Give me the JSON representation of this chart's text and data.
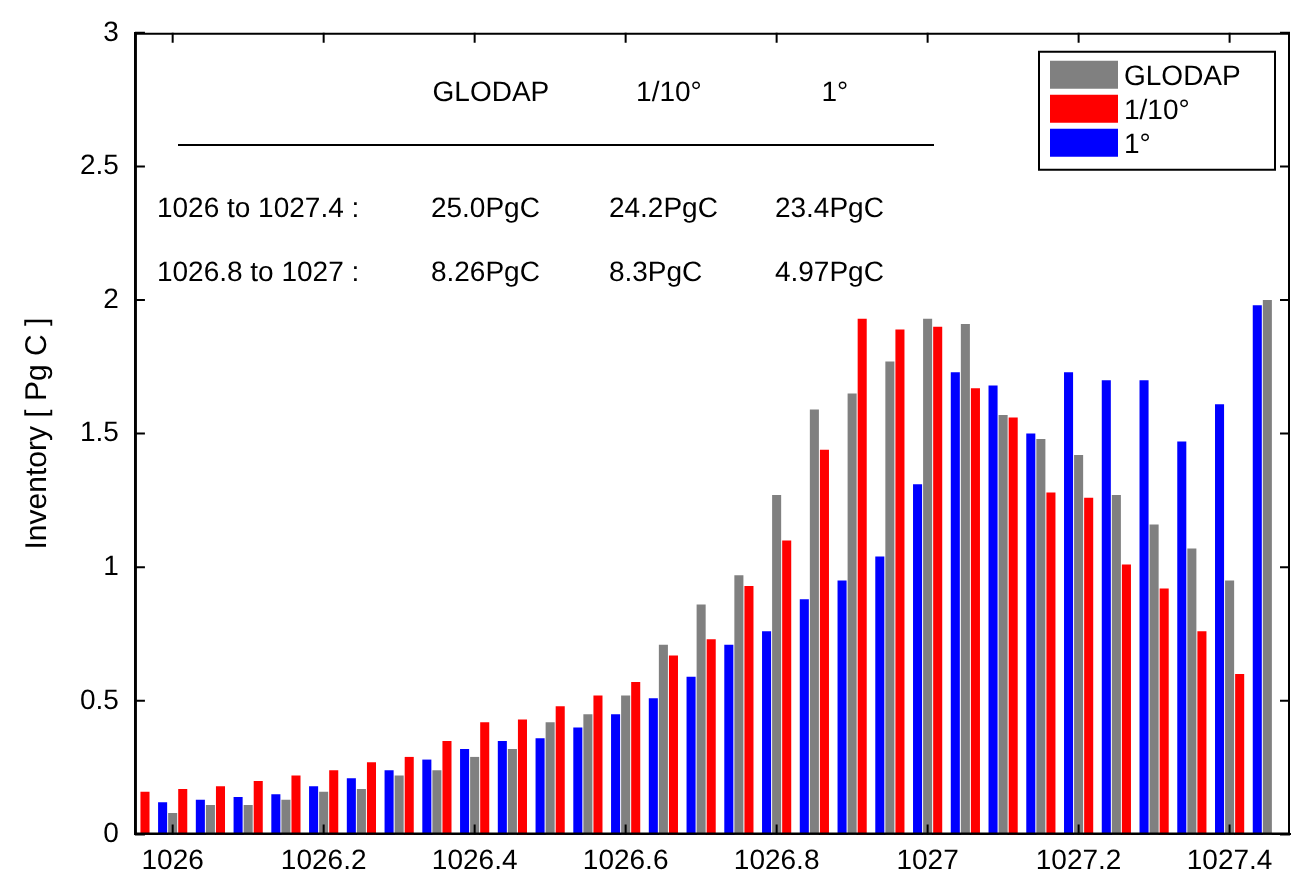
{
  "chart_data": {
    "type": "bar",
    "ylabel": "Inventory [ Pg C ]",
    "x": [
      1025.95,
      1026,
      1026.05,
      1026.1,
      1026.15,
      1026.2,
      1026.25,
      1026.3,
      1026.35,
      1026.4,
      1026.45,
      1026.5,
      1026.55,
      1026.6,
      1026.65,
      1026.7,
      1026.75,
      1026.8,
      1026.85,
      1026.9,
      1026.95,
      1027,
      1027.05,
      1027.1,
      1027.15,
      1027.2,
      1027.25,
      1027.3,
      1027.35,
      1027.4,
      1027.45
    ],
    "series": [
      {
        "name": "1°",
        "color": "#0000ff",
        "values": [
          null,
          0.12,
          0.13,
          0.14,
          0.15,
          0.18,
          0.21,
          0.24,
          0.28,
          0.32,
          0.35,
          0.36,
          0.4,
          0.45,
          0.51,
          0.59,
          0.71,
          0.76,
          0.88,
          0.95,
          1.04,
          1.31,
          1.73,
          1.68,
          1.5,
          1.73,
          1.7,
          1.7,
          1.47,
          1.61,
          1.98
        ]
      },
      {
        "name": "GLODAP",
        "color": "#808080",
        "values": [
          null,
          0.08,
          0.11,
          0.11,
          0.13,
          0.16,
          0.17,
          0.22,
          0.24,
          0.29,
          0.32,
          0.42,
          0.45,
          0.52,
          0.71,
          0.86,
          0.97,
          1.27,
          1.59,
          1.65,
          1.77,
          1.93,
          1.91,
          1.57,
          1.48,
          1.42,
          1.27,
          1.16,
          1.07,
          0.95,
          2.0
        ]
      },
      {
        "name": "1/10°",
        "color": "#ff0000",
        "values": [
          0.16,
          0.17,
          0.18,
          0.2,
          0.22,
          0.24,
          0.27,
          0.29,
          0.35,
          0.42,
          0.43,
          0.48,
          0.52,
          0.57,
          0.67,
          0.73,
          0.93,
          1.1,
          1.44,
          1.93,
          1.89,
          1.9,
          1.67,
          1.56,
          1.28,
          1.26,
          1.01,
          0.92,
          0.76,
          0.6,
          null
        ]
      }
    ],
    "xlim": [
      1025.95,
      1027.48
    ],
    "ylim": [
      0,
      3
    ],
    "xticks": [
      {
        "value": 1026,
        "label": "1026"
      },
      {
        "value": 1026.2,
        "label": "1026.2"
      },
      {
        "value": 1026.4,
        "label": "1026.4"
      },
      {
        "value": 1026.6,
        "label": "1026.6"
      },
      {
        "value": 1026.8,
        "label": "1026.8"
      },
      {
        "value": 1027,
        "label": "1027"
      },
      {
        "value": 1027.2,
        "label": "1027.2"
      },
      {
        "value": 1027.4,
        "label": "1027.4"
      }
    ],
    "yticks": [
      0,
      0.5,
      1,
      1.5,
      2,
      2.5,
      3
    ],
    "annotations": [
      "GLODAP",
      "1/10°",
      "1°",
      "1026 to 1027.4 :",
      "25.0PgC",
      "24.2PgC",
      "23.4PgC",
      "1026.8 to 1027 :",
      "8.26PgC",
      "8.3PgC",
      "4.97PgC"
    ],
    "legend": "top right",
    "grid": false
  }
}
